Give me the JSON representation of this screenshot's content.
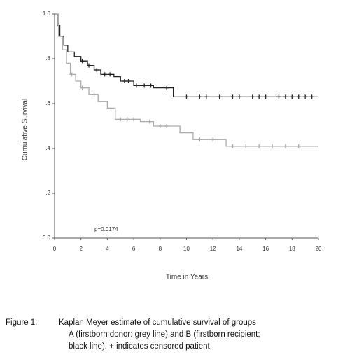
{
  "chart_data": {
    "type": "line",
    "step": "post",
    "x_label": "Time in Years",
    "y_label": "Cumulative Survival",
    "annotation": "p=0.0174",
    "xlim": [
      0,
      20
    ],
    "xticks": [
      0,
      2,
      4,
      6,
      8,
      10,
      12,
      14,
      16,
      18,
      20
    ],
    "ylim": [
      0,
      1
    ],
    "yticks": [
      {
        "value": 0,
        "label": "0.0"
      },
      {
        "value": 0.2,
        "label": ".2"
      },
      {
        "value": 0.4,
        "label": ".4"
      },
      {
        "value": 0.6,
        "label": ".6"
      },
      {
        "value": 0.8,
        "label": ".8"
      },
      {
        "value": 1,
        "label": "1.0"
      }
    ],
    "grid": false,
    "series": [
      {
        "color": "#222222",
        "x": [
          0,
          0.2,
          0.4,
          0.7,
          1.0,
          1.5,
          2.0,
          2.5,
          3.0,
          3.5,
          4.5,
          5.0,
          6.0,
          7.5,
          9.0,
          20
        ],
        "values": [
          1.0,
          0.95,
          0.9,
          0.86,
          0.83,
          0.81,
          0.79,
          0.77,
          0.75,
          0.73,
          0.72,
          0.7,
          0.68,
          0.67,
          0.63,
          0.63
        ],
        "censored_x": [
          2.1,
          2.6,
          3.2,
          3.8,
          4.2,
          5.3,
          5.6,
          6.2,
          6.8,
          7.3,
          8.5,
          10,
          11,
          11.5,
          12.5,
          13.5,
          14,
          15,
          15.5,
          16,
          17,
          17.5,
          18,
          18.5,
          19,
          19.5
        ],
        "censored_values": [
          0.79,
          0.77,
          0.75,
          0.73,
          0.73,
          0.7,
          0.7,
          0.68,
          0.68,
          0.68,
          0.67,
          0.63,
          0.63,
          0.63,
          0.63,
          0.63,
          0.63,
          0.63,
          0.63,
          0.63,
          0.63,
          0.63,
          0.63,
          0.63,
          0.63,
          0.63
        ]
      },
      {
        "color": "#aaaaaa",
        "x": [
          0,
          0.3,
          0.6,
          0.9,
          1.2,
          1.6,
          2.0,
          2.6,
          3.3,
          4.0,
          4.6,
          6.5,
          7.5,
          9.5,
          10.5,
          13.0,
          20
        ],
        "values": [
          1.0,
          0.9,
          0.84,
          0.78,
          0.73,
          0.7,
          0.67,
          0.64,
          0.61,
          0.58,
          0.53,
          0.52,
          0.5,
          0.47,
          0.44,
          0.41,
          0.41
        ],
        "censored_x": [
          1.3,
          2.1,
          3.0,
          5.0,
          5.5,
          6.0,
          7.2,
          8.0,
          8.5,
          11.0,
          12.0,
          13.5,
          14.5,
          15.5,
          16.5,
          17.5,
          18.5
        ],
        "censored_values": [
          0.73,
          0.67,
          0.64,
          0.53,
          0.53,
          0.53,
          0.52,
          0.5,
          0.5,
          0.44,
          0.44,
          0.41,
          0.41,
          0.41,
          0.41,
          0.41,
          0.41
        ]
      }
    ]
  },
  "caption": {
    "label": "Figure 1:",
    "lines": [
      "Kaplan Meyer estimate of cumulative survival of groups",
      "A (firstborn donor: grey line)  and B (firstborn recipient;",
      "black line). + indicates censored patient"
    ]
  }
}
